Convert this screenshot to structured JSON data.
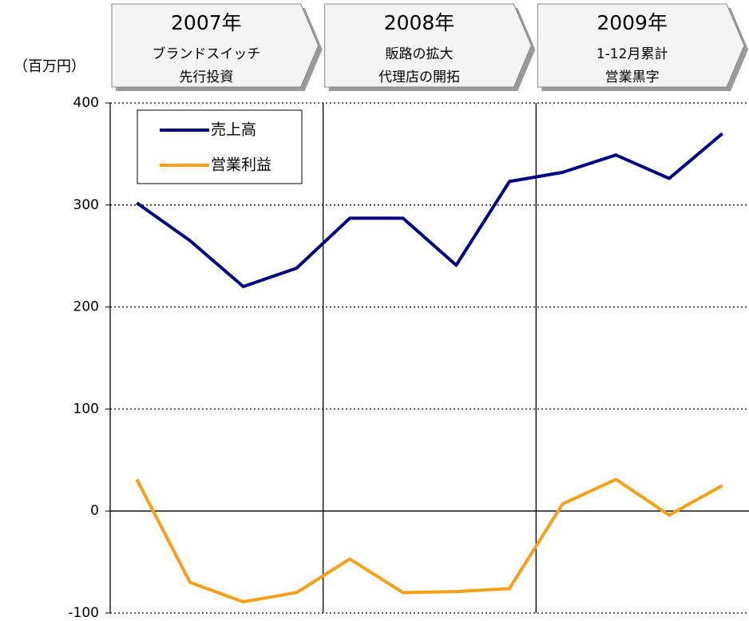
{
  "chart_data": {
    "type": "line",
    "y_axis_label": "（百万円）",
    "periods": [
      {
        "year": "2007年",
        "lines": [
          "ブランドスイッチ",
          "先行投資"
        ]
      },
      {
        "year": "2008年",
        "lines": [
          "販路の拡大",
          "代理店の開拓"
        ]
      },
      {
        "year": "2009年",
        "lines": [
          "1-12月累計",
          "営業黒字"
        ]
      }
    ],
    "categories": [
      null,
      null,
      null,
      null,
      null,
      null,
      null,
      null,
      null,
      null,
      null,
      null
    ],
    "series": [
      {
        "name": "売上高",
        "color": "#000080",
        "values": [
          302,
          265,
          220,
          238,
          287,
          287,
          241,
          323,
          332,
          349,
          326,
          370
        ]
      },
      {
        "name": "営業利益",
        "color": "#f5a01a",
        "values": [
          31,
          -70,
          -89,
          -80,
          -47,
          -80,
          -79,
          -76,
          7,
          31,
          -4,
          25
        ]
      }
    ],
    "ylim": [
      -100,
      400
    ],
    "yticks": [
      -100,
      0,
      100,
      200,
      300,
      400
    ],
    "grid": true,
    "legend": "upper left"
  }
}
